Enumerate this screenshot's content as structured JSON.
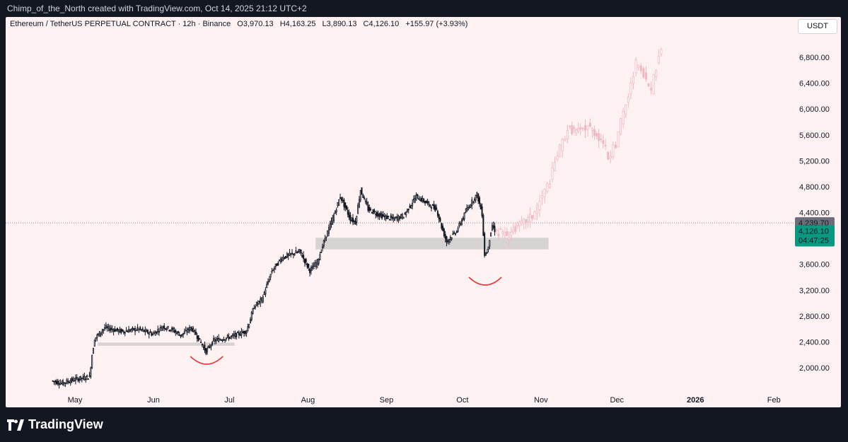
{
  "header": {
    "credit": "Chimp_of_the_North created with TradingView.com, Oct 14, 2025 21:12 UTC+2"
  },
  "legend": {
    "symbol": "Ethereum / TetherUS PERPETUAL CONTRACT · 12h · Binance",
    "open": "O3,970.13",
    "high": "H4,163.25",
    "low": "L3,890.13",
    "close": "C4,126.10",
    "change": "+155.97 (+3.93%)"
  },
  "currency_button": "USDT",
  "price_labels": {
    "ref_value": "4,239.70",
    "last_value": "4,126.10",
    "countdown": "04:47:25"
  },
  "footer": {
    "brand": "TradingView"
  },
  "colors": {
    "panel": "#fdf1f2",
    "candles": "#131722",
    "projection": "#f2b8c2",
    "zone": "#d7d3d3",
    "arc": "#e5393a",
    "last_label": "#089981",
    "ref_label": "#6b6e78"
  },
  "chart_data": {
    "type": "candlestick",
    "yaxis": {
      "ticks": [
        2000,
        2400,
        2800,
        3200,
        3600,
        4000,
        4400,
        4800,
        5200,
        5600,
        6000,
        6400,
        6800
      ],
      "tick_labels": [
        "2,000.00",
        "2,400.00",
        "2,800.00",
        "3,200.00",
        "3,600.00",
        "4,000.00",
        "4,400.00",
        "4,800.00",
        "5,200.00",
        "5,600.00",
        "6,000.00",
        "6,400.00",
        "6,800.00"
      ],
      "range": [
        1620,
        7050
      ]
    },
    "xaxis": {
      "labels": [
        "May",
        "Jun",
        "Jul",
        "Aug",
        "Sep",
        "Oct",
        "Nov",
        "Dec",
        "2026",
        "Feb"
      ],
      "bold_labels": [
        "2026"
      ]
    },
    "reference_line": 4239.7,
    "last_price": 4126.1,
    "actual_path": [
      [
        "2025-04-22",
        1800
      ],
      [
        "2025-04-26",
        1760
      ],
      [
        "2025-05-01",
        1820
      ],
      [
        "2025-05-07",
        1860
      ],
      [
        "2025-05-08",
        2200
      ],
      [
        "2025-05-09",
        2450
      ],
      [
        "2025-05-13",
        2620
      ],
      [
        "2025-05-20",
        2560
      ],
      [
        "2025-05-26",
        2600
      ],
      [
        "2025-06-01",
        2520
      ],
      [
        "2025-06-05",
        2640
      ],
      [
        "2025-06-09",
        2580
      ],
      [
        "2025-06-12",
        2500
      ],
      [
        "2025-06-16",
        2620
      ],
      [
        "2025-06-18",
        2520
      ],
      [
        "2025-06-22",
        2250
      ],
      [
        "2025-06-25",
        2420
      ],
      [
        "2025-07-02",
        2480
      ],
      [
        "2025-07-08",
        2570
      ],
      [
        "2025-07-11",
        2950
      ],
      [
        "2025-07-14",
        3050
      ],
      [
        "2025-07-18",
        3500
      ],
      [
        "2025-07-22",
        3700
      ],
      [
        "2025-07-26",
        3760
      ],
      [
        "2025-07-29",
        3800
      ],
      [
        "2025-08-02",
        3500
      ],
      [
        "2025-08-05",
        3640
      ],
      [
        "2025-08-08",
        4000
      ],
      [
        "2025-08-11",
        4300
      ],
      [
        "2025-08-14",
        4650
      ],
      [
        "2025-08-18",
        4300
      ],
      [
        "2025-08-20",
        4250
      ],
      [
        "2025-08-22",
        4750
      ],
      [
        "2025-08-25",
        4450
      ],
      [
        "2025-08-30",
        4350
      ],
      [
        "2025-09-04",
        4300
      ],
      [
        "2025-09-08",
        4350
      ],
      [
        "2025-09-13",
        4650
      ],
      [
        "2025-09-17",
        4550
      ],
      [
        "2025-09-21",
        4450
      ],
      [
        "2025-09-23",
        4180
      ],
      [
        "2025-09-25",
        3950
      ],
      [
        "2025-09-29",
        4120
      ],
      [
        "2025-10-03",
        4450
      ],
      [
        "2025-10-07",
        4680
      ],
      [
        "2025-10-09",
        4380
      ],
      [
        "2025-10-10",
        3750
      ],
      [
        "2025-10-11",
        3800
      ],
      [
        "2025-10-13",
        4200
      ],
      [
        "2025-10-14",
        4126
      ]
    ],
    "projection_path": [
      [
        "2025-10-14",
        4126
      ],
      [
        "2025-10-19",
        4050
      ],
      [
        "2025-10-24",
        4200
      ],
      [
        "2025-10-29",
        4350
      ],
      [
        "2025-11-02",
        4650
      ],
      [
        "2025-11-05",
        4900
      ],
      [
        "2025-11-08",
        5300
      ],
      [
        "2025-11-12",
        5700
      ],
      [
        "2025-11-17",
        5650
      ],
      [
        "2025-11-20",
        5750
      ],
      [
        "2025-11-26",
        5500
      ],
      [
        "2025-11-28",
        5250
      ],
      [
        "2025-12-01",
        5450
      ],
      [
        "2025-12-03",
        5800
      ],
      [
        "2025-12-06",
        6200
      ],
      [
        "2025-12-09",
        6700
      ],
      [
        "2025-12-12",
        6500
      ],
      [
        "2025-12-15",
        6300
      ],
      [
        "2025-12-17",
        6650
      ],
      [
        "2025-12-19",
        6950
      ]
    ],
    "zones": [
      {
        "from": "2025-05-10",
        "to": "2025-07-03",
        "low": 2340,
        "high": 2390
      },
      {
        "from": "2025-08-04",
        "to": "2025-11-04",
        "low": 3830,
        "high": 4010
      }
    ]
  }
}
